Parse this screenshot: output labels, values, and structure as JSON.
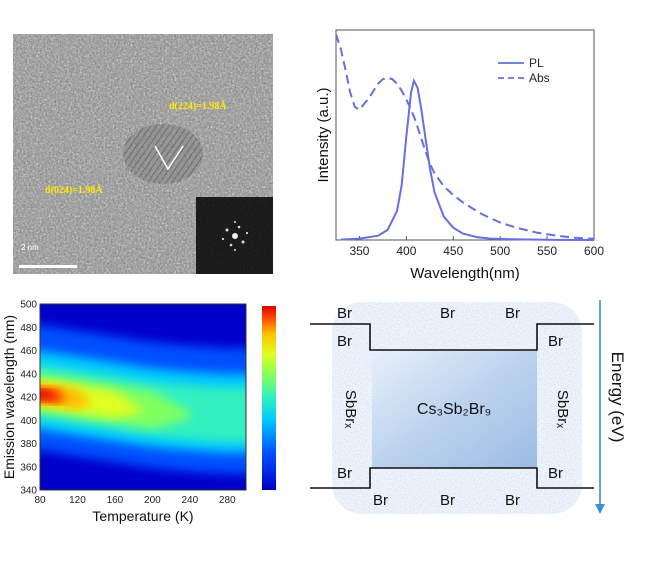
{
  "tem": {
    "d_spacing_label_1": "d(224)=1.98Å",
    "d_spacing_label_2": "d(024)=1.98Å",
    "scale_bar_label": "2 nm"
  },
  "pl_abs": {
    "chart_data": {
      "type": "line",
      "xlabel": "Wavelength(nm)",
      "ylabel": "Intensity (a.u.)",
      "xlim": [
        325,
        600
      ],
      "ylim": [
        0,
        1.45
      ],
      "xticks": [
        350,
        400,
        450,
        500,
        550,
        600
      ],
      "series": [
        {
          "name": "PL",
          "style": "solid",
          "x": [
            330,
            350,
            370,
            380,
            390,
            395,
            400,
            405,
            408,
            412,
            416,
            420,
            425,
            430,
            440,
            450,
            460,
            475,
            490,
            520,
            560,
            600
          ],
          "y": [
            0.003,
            0.01,
            0.03,
            0.07,
            0.2,
            0.38,
            0.72,
            1.02,
            1.1,
            1.05,
            0.9,
            0.72,
            0.5,
            0.33,
            0.16,
            0.085,
            0.045,
            0.02,
            0.01,
            0.004,
            0.001,
            0.0
          ]
        },
        {
          "name": "Abs",
          "style": "dashed",
          "x": [
            325,
            330,
            335,
            340,
            345,
            350,
            355,
            360,
            365,
            370,
            375,
            380,
            385,
            390,
            395,
            400,
            405,
            410,
            415,
            420,
            425,
            430,
            440,
            450,
            460,
            470,
            480,
            500,
            520,
            540,
            560,
            580,
            600
          ],
          "y": [
            1.42,
            1.32,
            1.18,
            1.02,
            0.92,
            0.9,
            0.94,
            0.98,
            1.03,
            1.08,
            1.11,
            1.12,
            1.11,
            1.08,
            1.03,
            0.97,
            0.9,
            0.82,
            0.72,
            0.62,
            0.53,
            0.46,
            0.37,
            0.31,
            0.26,
            0.22,
            0.18,
            0.12,
            0.08,
            0.05,
            0.03,
            0.015,
            0.008
          ]
        }
      ],
      "legend_position": "top-right",
      "colors": {
        "line": "#6670e0"
      }
    }
  },
  "contour": {
    "chart_data": {
      "type": "heatmap",
      "xlabel": "Temperature (K)",
      "ylabel": "Emission wavelength (nm)",
      "xlim": [
        80,
        300
      ],
      "ylim": [
        340,
        500
      ],
      "xticks": [
        80,
        120,
        160,
        200,
        240,
        280
      ],
      "yticks": [
        340,
        360,
        380,
        400,
        420,
        440,
        460,
        480,
        500
      ],
      "peak": [
        {
          "temperature": 80,
          "wavelength": 422
        },
        {
          "temperature": 120,
          "wavelength": 417
        },
        {
          "temperature": 160,
          "wavelength": 412
        },
        {
          "temperature": 200,
          "wavelength": 407
        },
        {
          "temperature": 240,
          "wavelength": 404
        },
        {
          "temperature": 280,
          "wavelength": 402
        }
      ],
      "colormap": [
        "#0000c8",
        "#0050ff",
        "#00c8ff",
        "#30f0c0",
        "#80ff60",
        "#e0ff20",
        "#ffc000",
        "#ff5000",
        "#e00000"
      ]
    }
  },
  "energy_diagram": {
    "center_label": "Cs₃Sb₂Br₉",
    "side_label": "SbBrₓ",
    "br_label": "Br",
    "axis_label": "Energy (eV)"
  }
}
